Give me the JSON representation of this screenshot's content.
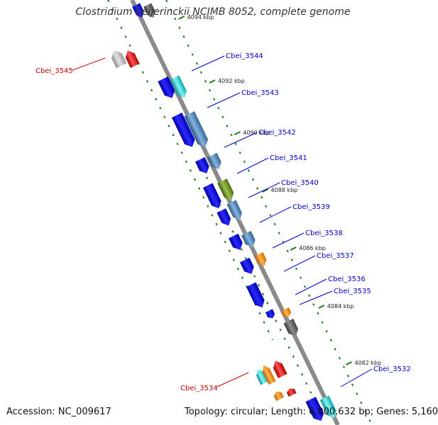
{
  "title": "Clostridium beijerinckii NCIMB 8052, complete genome",
  "accession": "Accession: NC_009617",
  "topology": "Topology: circular; Length: 6,000,632 bp; Genes: 5,160",
  "scale_labels": [
    "4094 kbp",
    "4092 kbp",
    "4090 kbp",
    "4088 kbp",
    "4086 kbp",
    "4084 kbp",
    "4082 kbp"
  ],
  "gene_labels": [
    {
      "text": "Cbei_3545",
      "strand": "minus"
    },
    {
      "text": "Cbei_3544",
      "strand": "plus"
    },
    {
      "text": "Cbei_3543",
      "strand": "plus"
    },
    {
      "text": "Cbei_3542",
      "strand": "plus"
    },
    {
      "text": "Cbei_3541",
      "strand": "plus"
    },
    {
      "text": "Cbei_3540",
      "strand": "plus"
    },
    {
      "text": "Cbei_3539",
      "strand": "plus"
    },
    {
      "text": "Cbei_3538",
      "strand": "plus"
    },
    {
      "text": "Cbei_3537",
      "strand": "plus"
    },
    {
      "text": "Cbei_3536",
      "strand": "plus"
    },
    {
      "text": "Cbei_3535",
      "strand": "plus"
    },
    {
      "text": "Cbei_3534",
      "strand": "minus"
    },
    {
      "text": "Cbei_3532",
      "strand": "plus"
    }
  ],
  "colors": {
    "backbone": "#8a8a8a",
    "cds_blue": "#1010e0",
    "cyan": "#22dddd",
    "steel": "#4a84b8",
    "olive": "#6b8e23",
    "orange": "#ff8c00",
    "red": "#ee1111",
    "gray": "#a8a8a8",
    "dark_gray": "#606060",
    "dots": "#1a7a1a",
    "label_plus": "#0000cc",
    "label_minus": "#cc0000"
  }
}
